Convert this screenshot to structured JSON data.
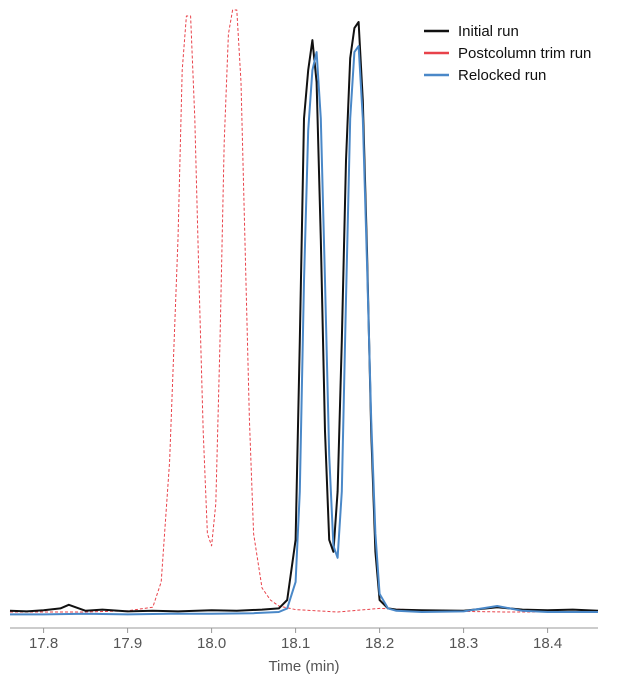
{
  "chart_data": {
    "type": "line",
    "title": "",
    "xlabel": "Time (min)",
    "ylabel": "",
    "xlim": [
      17.76,
      18.46
    ],
    "ylim": [
      0,
      1
    ],
    "x_ticks": [
      17.8,
      17.9,
      18.0,
      18.1,
      18.2,
      18.3,
      18.4
    ],
    "x_tick_labels": [
      "17.8",
      "17.9",
      "18.0",
      "18.1",
      "18.2",
      "18.3",
      "18.4"
    ],
    "grid": false,
    "legend_position": "top-right",
    "series": [
      {
        "name": "Initial run",
        "color": "#111111",
        "style": "solid",
        "x": [
          17.76,
          17.78,
          17.8,
          17.82,
          17.83,
          17.85,
          17.87,
          17.9,
          17.93,
          17.96,
          18.0,
          18.03,
          18.06,
          18.08,
          18.09,
          18.1,
          18.105,
          18.11,
          18.115,
          18.12,
          18.125,
          18.13,
          18.135,
          18.14,
          18.145,
          18.15,
          18.155,
          18.16,
          18.165,
          18.17,
          18.175,
          18.18,
          18.185,
          18.19,
          18.195,
          18.2,
          18.21,
          18.22,
          18.25,
          18.3,
          18.34,
          18.37,
          18.4,
          18.43,
          18.46
        ],
        "y": [
          0.002,
          0.001,
          0.003,
          0.006,
          0.012,
          0.002,
          0.004,
          0.001,
          0.002,
          0.001,
          0.003,
          0.002,
          0.004,
          0.006,
          0.02,
          0.12,
          0.45,
          0.82,
          0.9,
          0.95,
          0.88,
          0.62,
          0.3,
          0.12,
          0.1,
          0.2,
          0.45,
          0.75,
          0.92,
          0.97,
          0.98,
          0.85,
          0.6,
          0.3,
          0.1,
          0.02,
          0.006,
          0.004,
          0.003,
          0.002,
          0.008,
          0.004,
          0.003,
          0.004,
          0.002
        ]
      },
      {
        "name": "Postcolumn trim run",
        "color": "#e8424a",
        "style": "dashed",
        "x": [
          17.76,
          17.8,
          17.85,
          17.9,
          17.93,
          17.94,
          17.95,
          17.96,
          17.965,
          17.97,
          17.975,
          17.98,
          17.985,
          17.99,
          17.995,
          18.0,
          18.005,
          18.01,
          18.015,
          18.02,
          18.025,
          18.03,
          18.035,
          18.04,
          18.045,
          18.05,
          18.06,
          18.07,
          18.08,
          18.1,
          18.15,
          18.2,
          18.25,
          18.3,
          18.35,
          18.4,
          18.46
        ],
        "y": [
          0.0,
          0.0,
          0.0,
          0.002,
          0.008,
          0.05,
          0.25,
          0.62,
          0.9,
          0.99,
          0.99,
          0.82,
          0.55,
          0.3,
          0.13,
          0.11,
          0.18,
          0.45,
          0.78,
          0.96,
          1.0,
          1.0,
          0.88,
          0.6,
          0.32,
          0.13,
          0.04,
          0.02,
          0.01,
          0.004,
          0.0,
          0.006,
          0.003,
          0.001,
          0.0,
          0.0,
          0.0
        ]
      },
      {
        "name": "Relocked run",
        "color": "#4a88c8",
        "style": "solid",
        "x": [
          17.76,
          17.8,
          17.85,
          17.9,
          17.95,
          18.0,
          18.05,
          18.08,
          18.09,
          18.1,
          18.105,
          18.11,
          18.115,
          18.12,
          18.125,
          18.13,
          18.135,
          18.14,
          18.145,
          18.15,
          18.155,
          18.16,
          18.165,
          18.17,
          18.175,
          18.18,
          18.185,
          18.19,
          18.195,
          18.2,
          18.21,
          18.22,
          18.25,
          18.3,
          18.34,
          18.37,
          18.4,
          18.46
        ],
        "y": [
          -0.004,
          -0.004,
          -0.003,
          -0.004,
          -0.003,
          -0.003,
          -0.002,
          0.0,
          0.006,
          0.05,
          0.2,
          0.55,
          0.8,
          0.9,
          0.93,
          0.82,
          0.55,
          0.26,
          0.11,
          0.09,
          0.2,
          0.52,
          0.82,
          0.93,
          0.94,
          0.82,
          0.58,
          0.32,
          0.13,
          0.03,
          0.006,
          0.002,
          0.0,
          0.001,
          0.01,
          0.002,
          0.0,
          0.0
        ]
      }
    ]
  }
}
